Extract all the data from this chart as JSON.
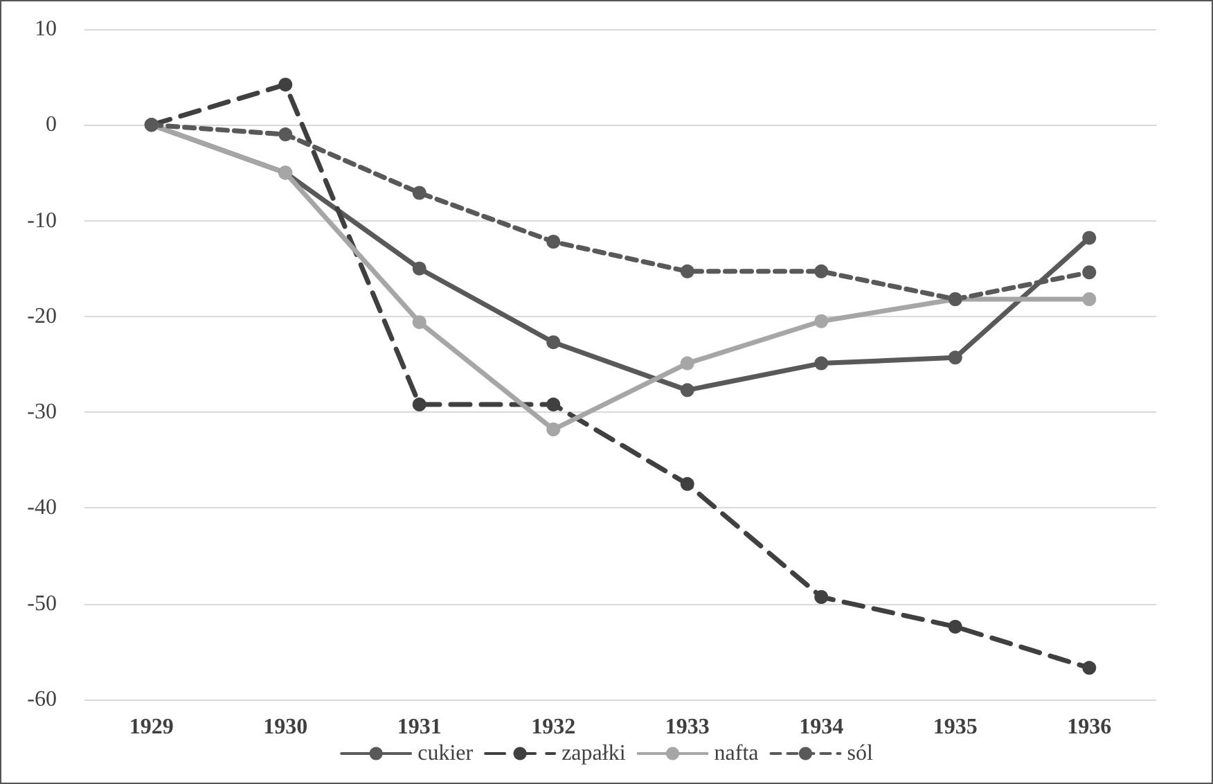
{
  "chart_data": {
    "type": "line",
    "categories": [
      "1929",
      "1930",
      "1931",
      "1932",
      "1933",
      "1934",
      "1935",
      "1936"
    ],
    "series": [
      {
        "name": "cukier",
        "color": "#595959",
        "line_style": "solid",
        "values": [
          0,
          -5,
          -15,
          -22.7,
          -27.7,
          -24.9,
          -24.3,
          -11.8
        ]
      },
      {
        "name": "zapałki",
        "color": "#404040",
        "line_style": "dashed",
        "values": [
          0,
          4.2,
          -29.2,
          -29.2,
          -37.5,
          -49.3,
          -52.4,
          -56.7
        ]
      },
      {
        "name": "nafta",
        "color": "#a6a6a6",
        "line_style": "solid",
        "values": [
          0,
          -5,
          -20.6,
          -31.8,
          -24.9,
          -20.5,
          -18.2,
          -18.2
        ]
      },
      {
        "name": "sól",
        "color": "#595959",
        "line_style": "dotted",
        "values": [
          0,
          -1,
          -7.1,
          -12.2,
          -15.3,
          -15.3,
          -18.2,
          -15.4
        ]
      }
    ],
    "ylim": [
      -60,
      10
    ],
    "yticks": [
      -60,
      -50,
      -40,
      -30,
      -20,
      -10,
      0,
      10
    ],
    "grid": "y",
    "legend": "bottom",
    "marker": "circle"
  }
}
